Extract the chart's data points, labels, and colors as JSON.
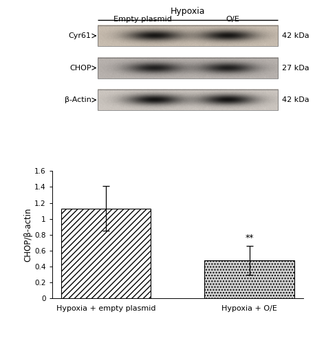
{
  "bar_values": [
    1.13,
    0.48
  ],
  "bar_errors": [
    0.28,
    0.18
  ],
  "bar_labels": [
    "Hypoxia + empty plasmid",
    "Hypoxia + O/E"
  ],
  "ylabel": "CHOP/β-actin",
  "ylim": [
    0,
    1.6
  ],
  "yticks": [
    0,
    0.2,
    0.4,
    0.6,
    0.8,
    1.0,
    1.2,
    1.4,
    1.6
  ],
  "significance": "**",
  "sig_bar_index": 1,
  "background_color": "#ffffff",
  "bar1_hatch": "////",
  "bar2_hatch": "....",
  "bar_edge_color": "#000000",
  "bar_face_color": "#ffffff",
  "error_color": "#000000",
  "blot_labels": [
    "Cyr61",
    "CHOP",
    "β-Actin"
  ],
  "blot_kda": [
    "42 kDa",
    "27 kDa",
    "42 kDa"
  ],
  "hypoxia_label": "Hypoxia",
  "empty_plasmid_label": "Empty plasmid",
  "oe_label": "O/E",
  "fig_width": 4.74,
  "fig_height": 4.98,
  "blot_bg_colors": [
    "#c8bdb0",
    "#b8b2ae",
    "#ccc6c0"
  ],
  "band_dark_color": "#1a1008",
  "blot_band_alphas": [
    0.88,
    0.82,
    0.9
  ]
}
